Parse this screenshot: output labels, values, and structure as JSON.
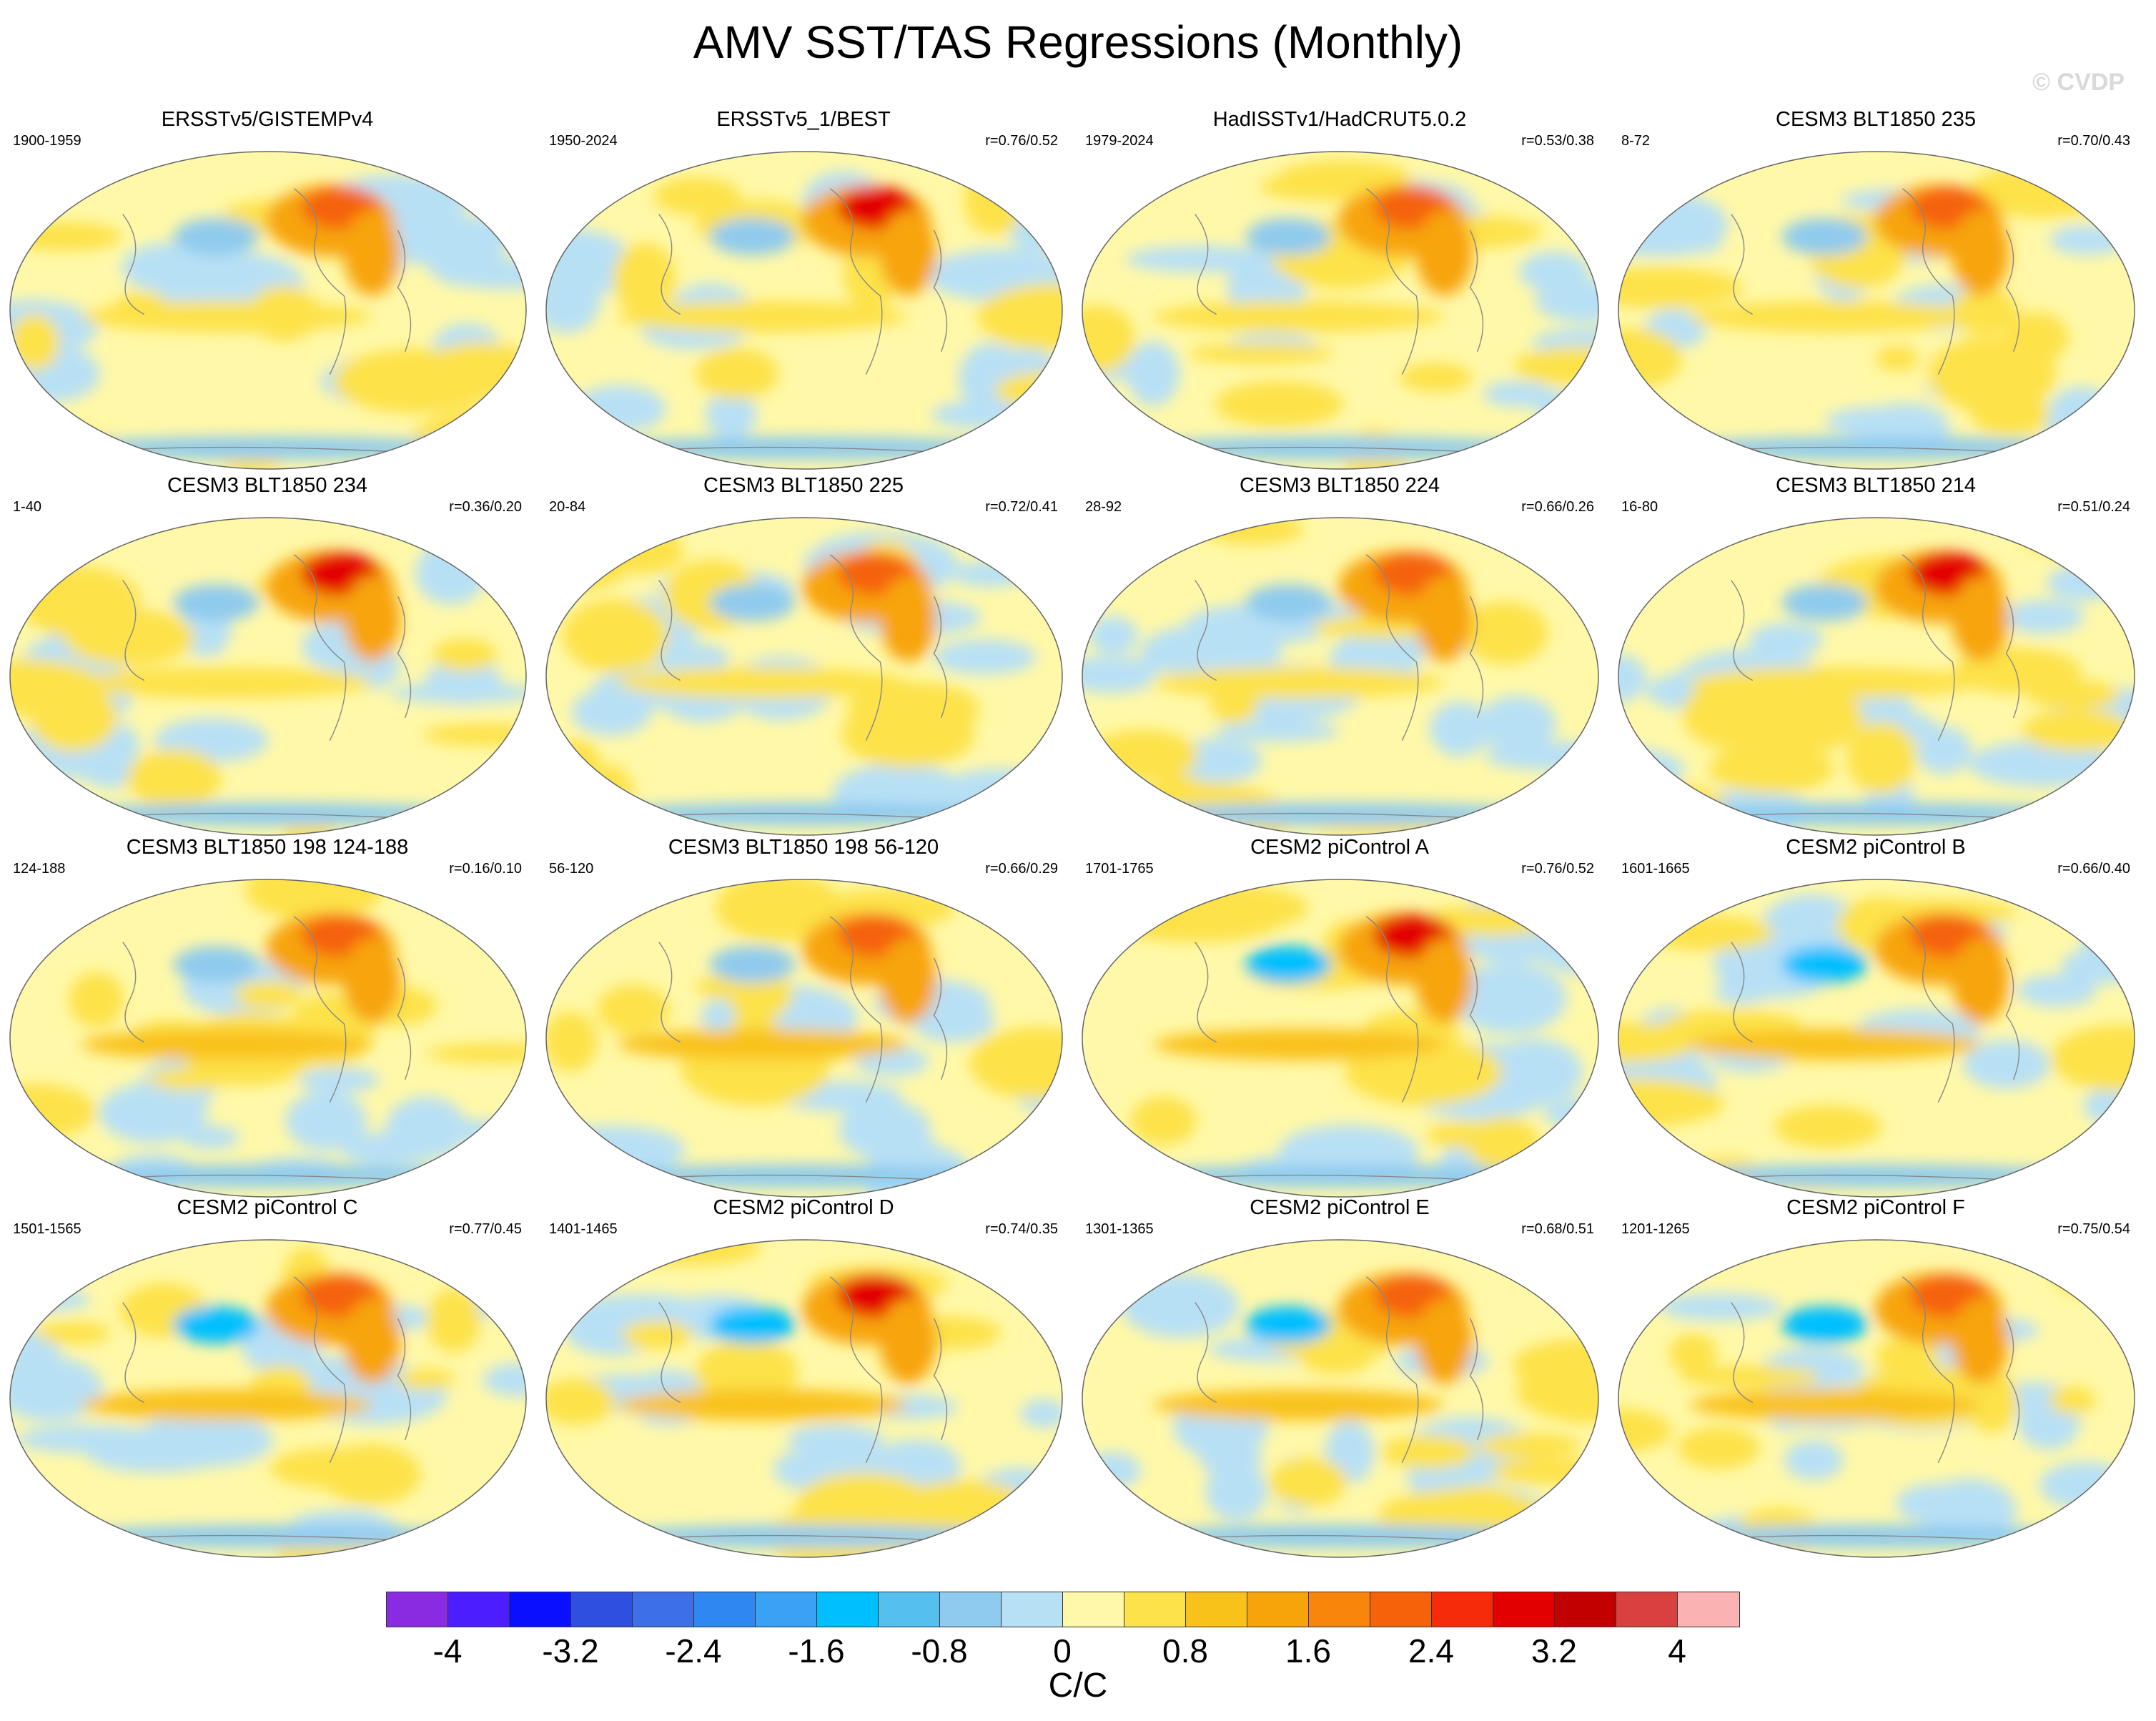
{
  "title": "AMV SST/TAS Regressions (Monthly)",
  "watermark": "© CVDP",
  "panels": [
    {
      "title": "ERSSTv5/GISTEMPv4",
      "years": "1900-1959",
      "corr": ""
    },
    {
      "title": "ERSSTv5_1/BEST",
      "years": "1950-2024",
      "corr": "r=0.76/0.52"
    },
    {
      "title": "HadISSTv1/HadCRUT5.0.2",
      "years": "1979-2024",
      "corr": "r=0.53/0.38"
    },
    {
      "title": "CESM3 BLT1850 235",
      "years": "8-72",
      "corr": "r=0.70/0.43"
    },
    {
      "title": "CESM3 BLT1850 234",
      "years": "1-40",
      "corr": "r=0.36/0.20"
    },
    {
      "title": "CESM3 BLT1850 225",
      "years": "20-84",
      "corr": "r=0.72/0.41"
    },
    {
      "title": "CESM3 BLT1850 224",
      "years": "28-92",
      "corr": "r=0.66/0.26"
    },
    {
      "title": "CESM3 BLT1850 214",
      "years": "16-80",
      "corr": "r=0.51/0.24"
    },
    {
      "title": "CESM3 BLT1850 198 124-188",
      "years": "124-188",
      "corr": "r=0.16/0.10"
    },
    {
      "title": "CESM3 BLT1850 198 56-120",
      "years": "56-120",
      "corr": "r=0.66/0.29"
    },
    {
      "title": "CESM2 piControl A",
      "years": "1701-1765",
      "corr": "r=0.76/0.52"
    },
    {
      "title": "CESM2 piControl B",
      "years": "1601-1665",
      "corr": "r=0.66/0.40"
    },
    {
      "title": "CESM2 piControl C",
      "years": "1501-1565",
      "corr": "r=0.77/0.45"
    },
    {
      "title": "CESM2 piControl D",
      "years": "1401-1465",
      "corr": "r=0.74/0.35"
    },
    {
      "title": "CESM2 piControl E",
      "years": "1301-1365",
      "corr": "r=0.68/0.51"
    },
    {
      "title": "CESM2 piControl F",
      "years": "1201-1265",
      "corr": "r=0.75/0.54"
    }
  ],
  "colorbar": {
    "colors": [
      "#8a2be2",
      "#4b1dff",
      "#0a10ff",
      "#2f4fe0",
      "#3d6fe8",
      "#2f88f2",
      "#3aa2f5",
      "#00bfff",
      "#55c0f0",
      "#8fcbee",
      "#b8e0f5",
      "#fff8a8",
      "#fde24a",
      "#f9c21a",
      "#f7a40a",
      "#f7860a",
      "#f5620a",
      "#f62b0a",
      "#e30000",
      "#c20000",
      "#d94040",
      "#fbb2b2"
    ],
    "ticks": [
      "-4",
      "-3.2",
      "-2.4",
      "-1.6",
      "-0.8",
      "0",
      "0.8",
      "1.6",
      "2.4",
      "3.2",
      "4"
    ],
    "units": "C/C"
  }
}
